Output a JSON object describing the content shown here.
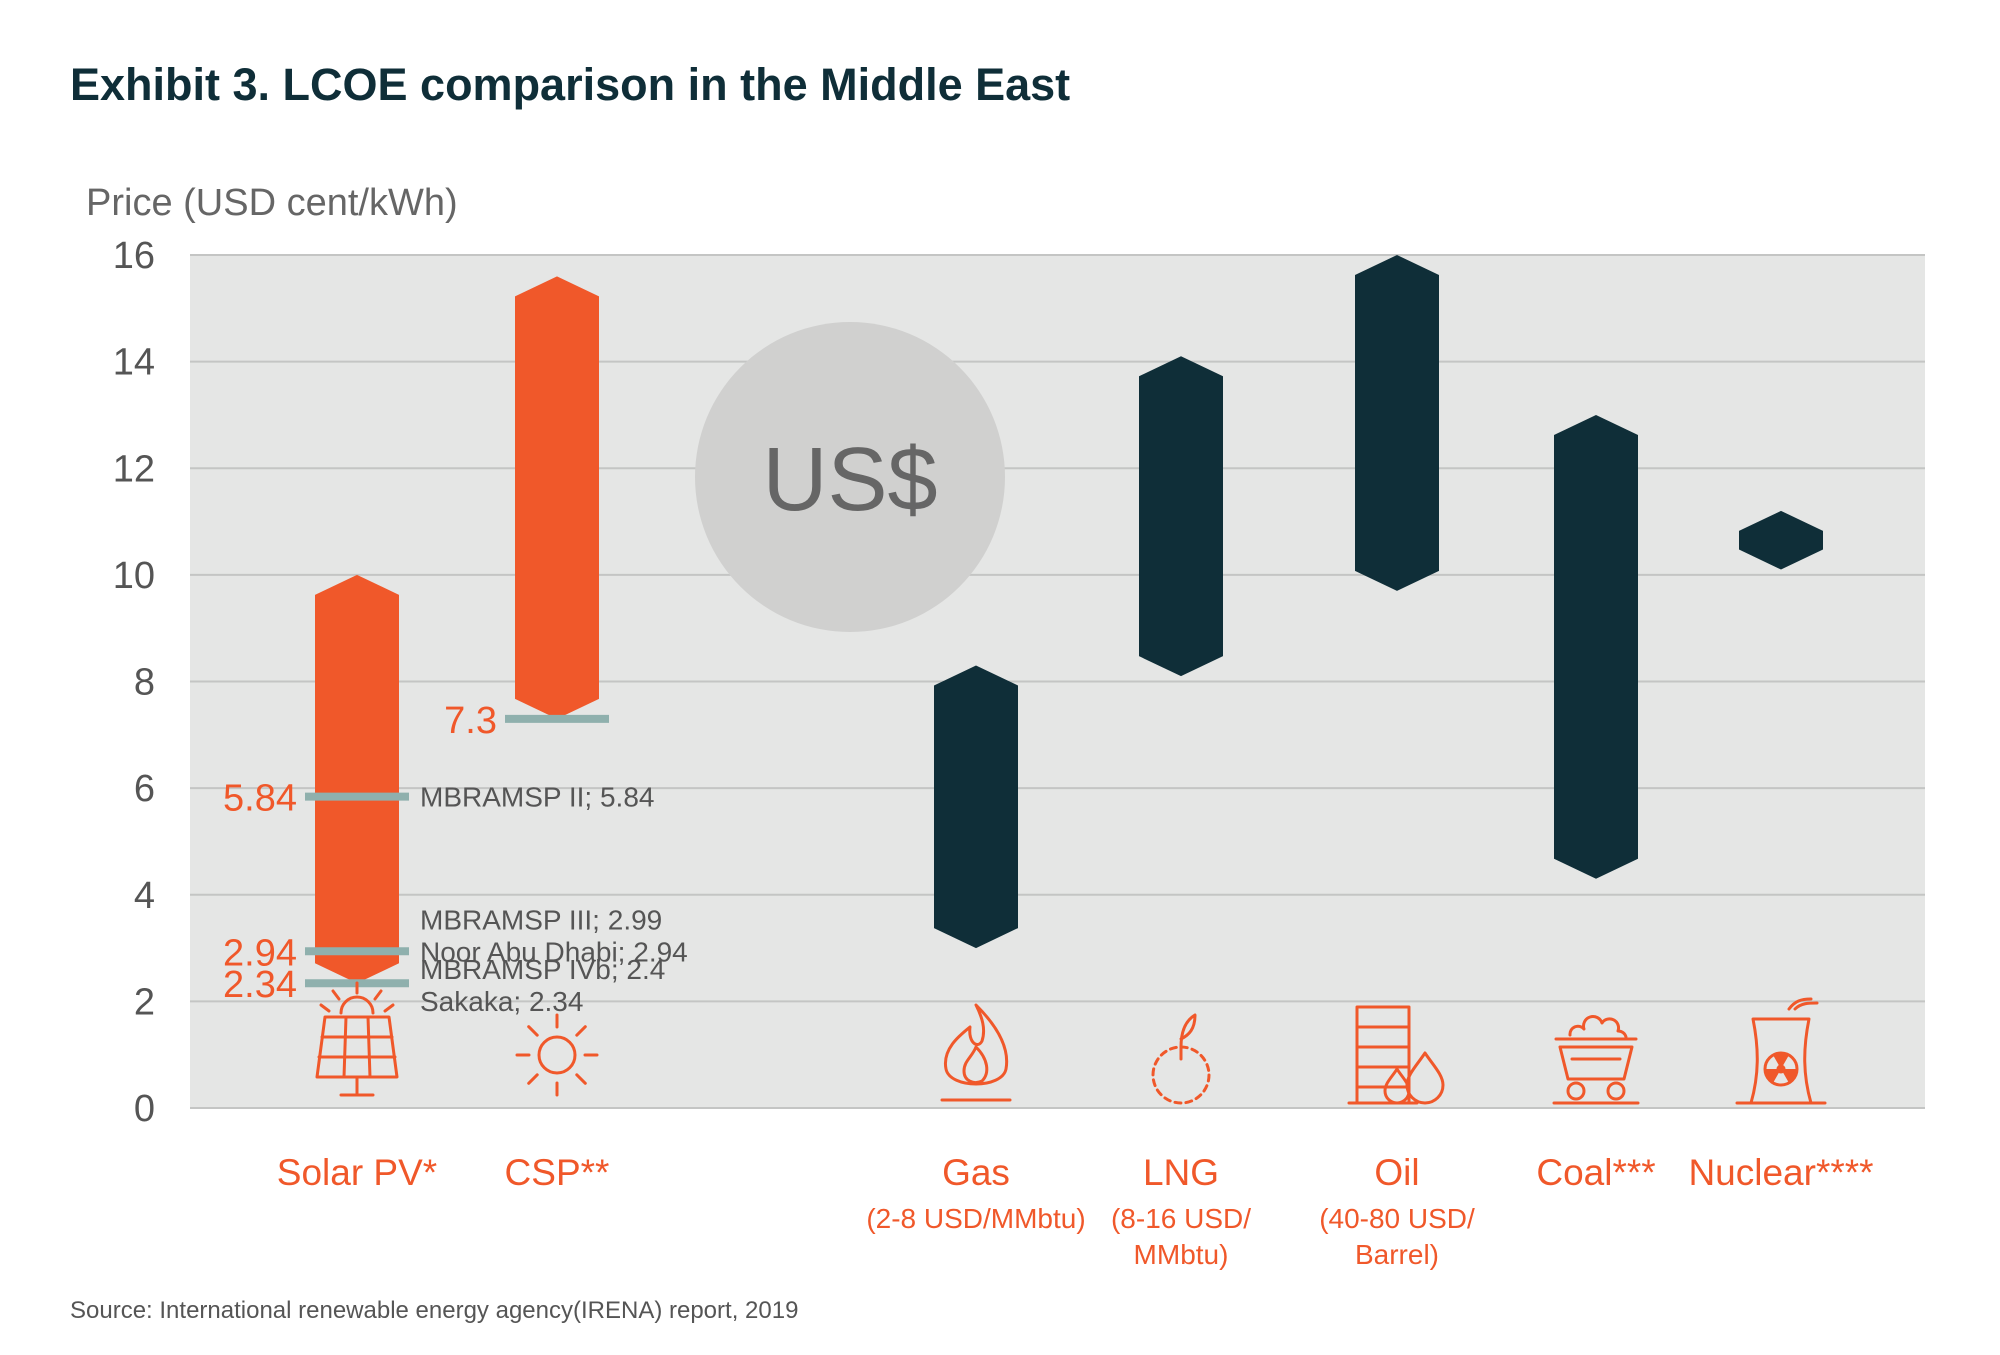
{
  "title": "Exhibit 3. LCOE comparison in the Middle East",
  "source": "Source: International renewable energy agency(IRENA) report, 2019",
  "badge_text": "US$",
  "colors": {
    "renewable": "#f0582a",
    "conventional": "#0f2e38",
    "marker": "#8fb0ad",
    "plot_bg": "#e5e6e5",
    "badge": "#d0d0cf"
  },
  "chart_data": {
    "type": "range-bar",
    "ylabel": "Price (USD cent/kWh)",
    "ylim": [
      0,
      16
    ],
    "yticks": [
      0,
      2,
      4,
      6,
      8,
      10,
      12,
      14,
      16
    ],
    "grid": true,
    "categories": [
      {
        "name": "Solar PV*",
        "sub": [],
        "low": 2.34,
        "high": 10.0,
        "group": "renewable",
        "icon": "solar-panel-icon"
      },
      {
        "name": "CSP**",
        "sub": [],
        "low": 7.3,
        "high": 15.6,
        "group": "renewable",
        "icon": "sun-icon"
      },
      {
        "name": "Gas",
        "sub": [
          "(2-8 USD/MMbtu)"
        ],
        "low": 3.0,
        "high": 8.3,
        "group": "conventional",
        "icon": "flame-icon"
      },
      {
        "name": "LNG",
        "sub": [
          "(8-16 USD/",
          "MMbtu)"
        ],
        "low": 8.1,
        "high": 14.1,
        "group": "conventional",
        "icon": "lng-icon"
      },
      {
        "name": "Oil",
        "sub": [
          "(40-80 USD/",
          "Barrel)"
        ],
        "low": 9.7,
        "high": 16.0,
        "group": "conventional",
        "icon": "oil-barrel-icon"
      },
      {
        "name": "Coal***",
        "sub": [],
        "low": 4.3,
        "high": 13.0,
        "group": "conventional",
        "icon": "coal-cart-icon"
      },
      {
        "name": "Nuclear****",
        "sub": [],
        "low": 10.1,
        "high": 11.2,
        "group": "conventional",
        "icon": "nuclear-plant-icon"
      }
    ],
    "markers": [
      {
        "category": "Solar PV*",
        "value": 5.84,
        "label": "5.84",
        "annotations": [
          "MBRAMSP II; 5.84"
        ]
      },
      {
        "category": "Solar PV*",
        "value": 2.94,
        "label": "2.94",
        "annotations": [
          "MBRAMSP III; 2.99",
          "Noor Abu Dhabi; 2.94"
        ]
      },
      {
        "category": "Solar PV*",
        "value": 2.34,
        "label": "2.34",
        "annotations": [
          "MBRAMSP IVb; 2.4",
          "Sakaka; 2.34"
        ]
      },
      {
        "category": "CSP**",
        "value": 7.3,
        "label": "7.3",
        "annotations": []
      }
    ]
  }
}
